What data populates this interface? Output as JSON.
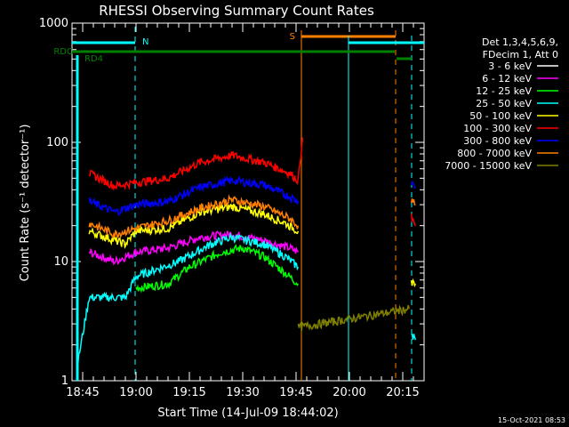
{
  "chart_data": {
    "type": "line",
    "title": "RHESSI Observing Summary Count Rates",
    "xlabel": "Start Time (14-Jul-09 18:44:02)",
    "ylabel": "Count Rate (s⁻¹ detector⁻¹)",
    "y_scale": "log",
    "ylim": [
      1,
      1000
    ],
    "xlim_minutes": [
      18.7,
      20.35
    ],
    "x_tick_labels": [
      "18:45",
      "19:00",
      "19:15",
      "19:30",
      "19:45",
      "20:00",
      "20:15"
    ],
    "x_ticks_hours": [
      18.75,
      19.0,
      19.25,
      19.5,
      19.75,
      20.0,
      20.25
    ],
    "y_tick_labels": [
      "1",
      "10",
      "100",
      "1000"
    ],
    "y_ticks": [
      1,
      10,
      100,
      1000
    ],
    "legend_header": [
      "Det 1,3,4,5,6,9,",
      "FDecim 1, Att 0"
    ],
    "legend_placement": "right",
    "series": [
      {
        "name": "3 - 6 keV",
        "color": "#000000",
        "points": [
          [
            19.0,
            7.5
          ],
          [
            19.2,
            8.5
          ],
          [
            19.35,
            11
          ],
          [
            19.45,
            13
          ],
          [
            19.55,
            12
          ],
          [
            19.65,
            10
          ],
          [
            19.75,
            9
          ]
        ]
      },
      {
        "name": "6 - 12 keV",
        "color": "#ff00ff",
        "points": [
          [
            18.78,
            12
          ],
          [
            18.9,
            10
          ],
          [
            19.0,
            12
          ],
          [
            19.15,
            13
          ],
          [
            19.3,
            16
          ],
          [
            19.45,
            17
          ],
          [
            19.6,
            15
          ],
          [
            19.72,
            13
          ],
          [
            19.76,
            12
          ]
        ]
      },
      {
        "name": "12 - 25 keV",
        "color": "#00ff00",
        "points": [
          [
            19.0,
            6
          ],
          [
            19.15,
            6.5
          ],
          [
            19.25,
            9
          ],
          [
            19.4,
            12
          ],
          [
            19.5,
            13
          ],
          [
            19.6,
            11
          ],
          [
            19.7,
            8
          ],
          [
            19.76,
            6.5
          ]
        ]
      },
      {
        "name": "25 - 50 keV",
        "color": "#00ffff",
        "points": [
          [
            18.72,
            1.2
          ],
          [
            18.78,
            5
          ],
          [
            18.95,
            5
          ],
          [
            19.0,
            7.5
          ],
          [
            19.2,
            10
          ],
          [
            19.35,
            14
          ],
          [
            19.45,
            16
          ],
          [
            19.6,
            14
          ],
          [
            19.7,
            11
          ],
          [
            19.76,
            9
          ]
        ]
      },
      {
        "name": "50 - 100 keV",
        "color": "#ffff00",
        "points": [
          [
            18.78,
            18
          ],
          [
            18.95,
            14
          ],
          [
            19.0,
            18
          ],
          [
            19.15,
            19
          ],
          [
            19.3,
            26
          ],
          [
            19.45,
            29
          ],
          [
            19.6,
            25
          ],
          [
            19.7,
            21
          ],
          [
            19.76,
            18
          ]
        ]
      },
      {
        "name": "100 - 300 keV",
        "color": "#ff0000",
        "points": [
          [
            18.78,
            55
          ],
          [
            18.9,
            43
          ],
          [
            19.0,
            46
          ],
          [
            19.15,
            50
          ],
          [
            19.3,
            68
          ],
          [
            19.45,
            78
          ],
          [
            19.6,
            68
          ],
          [
            19.72,
            55
          ],
          [
            19.76,
            48
          ],
          [
            19.78,
            110
          ]
        ]
      },
      {
        "name": "300 - 800 keV",
        "color": "#0000ff",
        "points": [
          [
            18.78,
            32
          ],
          [
            18.9,
            26
          ],
          [
            19.0,
            30
          ],
          [
            19.15,
            32
          ],
          [
            19.3,
            42
          ],
          [
            19.45,
            48
          ],
          [
            19.6,
            44
          ],
          [
            19.72,
            35
          ],
          [
            19.76,
            32
          ]
        ]
      },
      {
        "name": "800 - 7000 keV",
        "color": "#ff8000",
        "points": [
          [
            18.78,
            21
          ],
          [
            18.9,
            17
          ],
          [
            19.0,
            19
          ],
          [
            19.15,
            22
          ],
          [
            19.3,
            28
          ],
          [
            19.45,
            33
          ],
          [
            19.6,
            29
          ],
          [
            19.72,
            23
          ],
          [
            19.76,
            20
          ]
        ]
      },
      {
        "name": "7000 - 15000 keV",
        "color": "#808000",
        "points": [
          [
            19.76,
            2.8
          ],
          [
            20.28,
            4
          ]
        ]
      }
    ],
    "late_segment": [
      {
        "series": "300 - 800 keV",
        "color": "#0000ff",
        "points": [
          [
            20.29,
            45
          ],
          [
            20.31,
            42
          ]
        ]
      },
      {
        "series": "800 - 7000 keV",
        "color": "#ff8000",
        "points": [
          [
            20.29,
            32
          ],
          [
            20.31,
            30
          ]
        ]
      },
      {
        "series": "100 - 300 keV",
        "color": "#ff0000",
        "points": [
          [
            20.29,
            24
          ],
          [
            20.31,
            20
          ]
        ]
      },
      {
        "series": "50 - 100 keV",
        "color": "#ffff00",
        "points": [
          [
            20.29,
            6.5
          ],
          [
            20.31,
            6.5
          ]
        ]
      },
      {
        "series": "25 - 50 keV",
        "color": "#00ffff",
        "points": [
          [
            20.29,
            2.5
          ],
          [
            20.31,
            2.2
          ]
        ]
      }
    ],
    "flags": [
      {
        "label": "N",
        "color": "#00ffff"
      },
      {
        "label": "S",
        "color": "#ff8000"
      },
      {
        "label": "RDC",
        "color": "#008000"
      },
      {
        "label": "RD4",
        "color": "#008000"
      }
    ],
    "timestamp": "15-Oct-2021 08:53"
  }
}
